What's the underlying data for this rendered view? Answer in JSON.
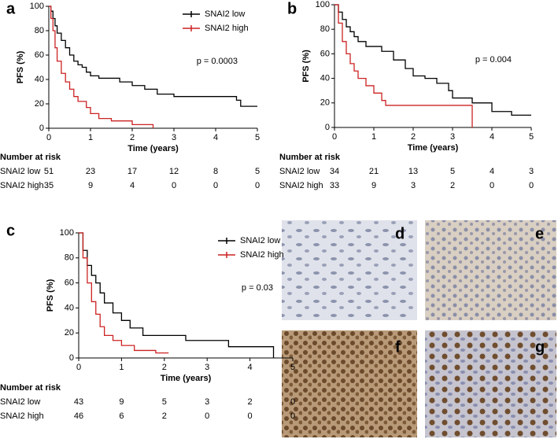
{
  "chart_data": [
    {
      "type": "step",
      "panel": "a",
      "xlabel": "Time (years)",
      "ylabel": "PFS (%)",
      "annotation": "p = 0.0003",
      "legend": "upper right",
      "xlim": [
        0,
        5
      ],
      "ylim": [
        0,
        100
      ],
      "xticks": [
        0,
        1,
        2,
        3,
        4,
        5
      ],
      "yticks": [
        0,
        20,
        40,
        60,
        80,
        100
      ],
      "series": [
        {
          "name": "SNAI2 low",
          "color": "#000000",
          "x": [
            0,
            0.05,
            0.1,
            0.15,
            0.2,
            0.3,
            0.4,
            0.5,
            0.6,
            0.7,
            0.8,
            0.9,
            1.0,
            1.2,
            1.5,
            1.7,
            2.0,
            2.3,
            2.6,
            3.0,
            3.5,
            4.5,
            4.6,
            5.0
          ],
          "values": [
            100,
            96,
            90,
            84,
            78,
            72,
            66,
            60,
            55,
            52,
            50,
            46,
            43,
            41,
            41,
            38,
            35,
            32,
            28,
            26,
            26,
            23,
            18,
            18
          ]
        },
        {
          "name": "SNAI2 high",
          "color": "#cc2222",
          "x": [
            0,
            0.05,
            0.1,
            0.15,
            0.2,
            0.3,
            0.4,
            0.5,
            0.6,
            0.7,
            0.9,
            1.0,
            1.2,
            1.5,
            2.0,
            2.2,
            2.5
          ],
          "values": [
            100,
            90,
            80,
            66,
            55,
            45,
            38,
            32,
            26,
            22,
            17,
            12,
            8,
            6,
            3,
            3,
            0
          ]
        }
      ],
      "risk_table": {
        "title": "Number at risk",
        "rows": [
          {
            "name": "SNAI2 low",
            "values": [
              51,
              23,
              17,
              12,
              8,
              5
            ]
          },
          {
            "name": "SNAI2 high",
            "values": [
              35,
              9,
              4,
              0,
              0,
              0
            ]
          }
        ]
      }
    },
    {
      "type": "step",
      "panel": "b",
      "xlabel": "Time (years)",
      "ylabel": "PFS (%)",
      "annotation": "p = 0.004",
      "xlim": [
        0,
        5
      ],
      "ylim": [
        0,
        100
      ],
      "xticks": [
        0,
        1,
        2,
        3,
        4,
        5
      ],
      "yticks": [
        0,
        20,
        40,
        60,
        80,
        100
      ],
      "series": [
        {
          "color": "#000000",
          "x": [
            0,
            0.1,
            0.2,
            0.3,
            0.4,
            0.5,
            0.6,
            0.8,
            1.0,
            1.2,
            1.5,
            1.8,
            2.0,
            2.3,
            2.6,
            2.9,
            3.0,
            3.5,
            4.0,
            4.5,
            5.0
          ],
          "values": [
            100,
            94,
            88,
            82,
            78,
            74,
            70,
            66,
            66,
            62,
            55,
            48,
            42,
            40,
            36,
            30,
            24,
            20,
            13,
            10,
            10
          ]
        },
        {
          "color": "#cc2222",
          "x": [
            0,
            0.1,
            0.2,
            0.3,
            0.4,
            0.5,
            0.6,
            0.8,
            1.0,
            1.2,
            1.3,
            3.5,
            3.5
          ],
          "values": [
            100,
            85,
            70,
            60,
            52,
            46,
            40,
            34,
            28,
            22,
            18,
            18,
            0
          ]
        }
      ],
      "risk_table": {
        "title": "Number at risk",
        "rows": [
          {
            "name": "SNAI2 low",
            "values": [
              34,
              21,
              13,
              5,
              4,
              3
            ]
          },
          {
            "name": "SNAI2 high",
            "values": [
              33,
              9,
              3,
              2,
              0,
              0
            ]
          }
        ]
      }
    },
    {
      "type": "step",
      "panel": "c",
      "xlabel": "Time (years)",
      "ylabel": "PFS (%)",
      "annotation": "p = 0.03",
      "legend": "upper right",
      "xlim": [
        0,
        5
      ],
      "ylim": [
        0,
        100
      ],
      "xticks": [
        0,
        1,
        2,
        3,
        4,
        5
      ],
      "yticks": [
        0,
        20,
        40,
        60,
        80,
        100
      ],
      "series": [
        {
          "name": "SNAI2 low",
          "color": "#000000",
          "x": [
            0,
            0.1,
            0.2,
            0.3,
            0.4,
            0.5,
            0.6,
            0.8,
            1.0,
            1.2,
            1.5,
            2.0,
            2.5,
            2.9,
            3.5,
            4.5,
            4.55
          ],
          "values": [
            100,
            86,
            74,
            66,
            60,
            52,
            44,
            36,
            30,
            24,
            18,
            18,
            14,
            14,
            9,
            9,
            0
          ]
        },
        {
          "name": "SNAI2 high",
          "color": "#cc2222",
          "x": [
            0,
            0.1,
            0.2,
            0.3,
            0.4,
            0.5,
            0.6,
            0.8,
            1.0,
            1.3,
            1.8,
            2.1
          ],
          "values": [
            100,
            80,
            60,
            45,
            35,
            25,
            18,
            14,
            10,
            6,
            4,
            4
          ]
        }
      ],
      "risk_table": {
        "title": "Number at risk",
        "rows": [
          {
            "name": "SNAI2 low",
            "values": [
              43,
              9,
              5,
              3,
              2,
              0
            ]
          },
          {
            "name": "SNAI2 high",
            "values": [
              46,
              6,
              2,
              0,
              0,
              0
            ]
          }
        ]
      }
    }
  ],
  "images": [
    {
      "label": "d"
    },
    {
      "label": "e"
    },
    {
      "label": "f"
    },
    {
      "label": "g"
    }
  ]
}
